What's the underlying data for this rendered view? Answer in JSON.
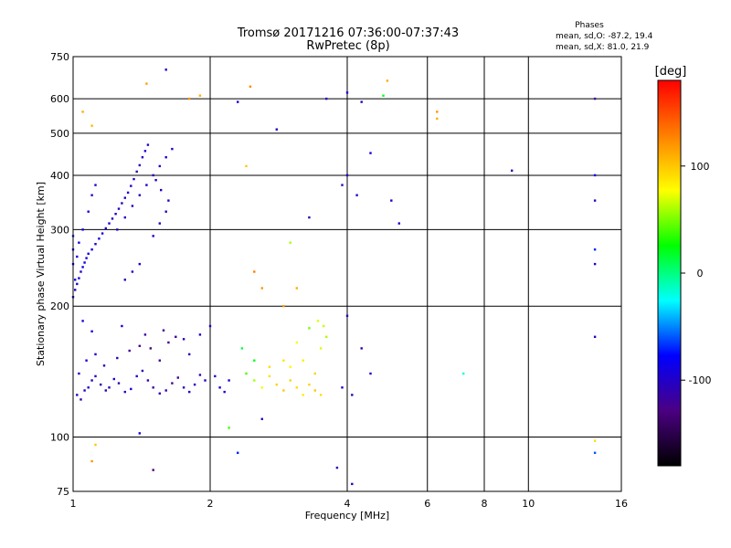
{
  "chart_data": {
    "type": "scatter",
    "title": "Tromsø 20171216 07:36:00-07:37:43",
    "subtitle": "RwPretec (8p)",
    "xlabel": "Frequency [MHz]",
    "ylabel": "Stationary phase Virtual Height [km]",
    "x_scale": "log",
    "y_scale": "log",
    "xlim": [
      1,
      16
    ],
    "ylim": [
      75,
      750
    ],
    "x_ticks": [
      1,
      2,
      4,
      6,
      8,
      10,
      16
    ],
    "x_tick_labels": [
      "1",
      "2",
      "4",
      "6",
      "8",
      "10",
      "16"
    ],
    "y_ticks": [
      75,
      100,
      200,
      300,
      400,
      500,
      600,
      750
    ],
    "y_tick_labels": [
      "75",
      "100",
      "200",
      "300",
      "400",
      "500",
      "600",
      "750"
    ],
    "grid": true,
    "stats": {
      "heading": "Phases",
      "o_line": "mean, sd,O: -87.2, 19.4",
      "x_line": "mean, sd,X:  81.0, 21.9"
    },
    "colorbar": {
      "label": "[deg]",
      "range": [
        -180,
        180
      ],
      "ticks": [
        100,
        0,
        -100
      ],
      "tick_labels": [
        "100",
        "0",
        "-100"
      ],
      "colormap": [
        "#000000",
        "#4b0082",
        "#0000ff",
        "#00ffff",
        "#00ff00",
        "#ffff00",
        "#ff8000",
        "#ff0000"
      ]
    },
    "points": [
      [
        1.02,
        125,
        -105
      ],
      [
        1.04,
        122,
        -110
      ],
      [
        1.06,
        128,
        -100
      ],
      [
        1.08,
        130,
        -95
      ],
      [
        1.1,
        135,
        -105
      ],
      [
        1.12,
        138,
        -100
      ],
      [
        1.15,
        132,
        -110
      ],
      [
        1.18,
        128,
        -105
      ],
      [
        1.2,
        130,
        -100
      ],
      [
        1.23,
        136,
        -98
      ],
      [
        1.26,
        133,
        -110
      ],
      [
        1.3,
        127,
        -105
      ],
      [
        1.34,
        129,
        -95
      ],
      [
        1.38,
        138,
        -100
      ],
      [
        1.42,
        142,
        -110
      ],
      [
        1.46,
        135,
        -115
      ],
      [
        1.5,
        130,
        -120
      ],
      [
        1.55,
        126,
        -110
      ],
      [
        1.6,
        128,
        -115
      ],
      [
        1.65,
        133,
        -125
      ],
      [
        1.7,
        137,
        -120
      ],
      [
        1.75,
        130,
        -110
      ],
      [
        1.8,
        127,
        -105
      ],
      [
        1.85,
        132,
        -100
      ],
      [
        1.9,
        139,
        -110
      ],
      [
        1.95,
        135,
        -100
      ],
      [
        2.05,
        138,
        -105
      ],
      [
        2.1,
        130,
        -95
      ],
      [
        2.15,
        127,
        -100
      ],
      [
        2.2,
        135,
        -95
      ],
      [
        1.03,
        140,
        -100
      ],
      [
        1.07,
        150,
        -90
      ],
      [
        1.12,
        155,
        -95
      ],
      [
        1.17,
        146,
        -110
      ],
      [
        1.25,
        152,
        -105
      ],
      [
        1.33,
        158,
        -120
      ],
      [
        1.4,
        162,
        -125
      ],
      [
        1.48,
        160,
        -130
      ],
      [
        1.55,
        150,
        -120
      ],
      [
        1.62,
        165,
        -125
      ],
      [
        1.68,
        170,
        -120
      ],
      [
        1.75,
        168,
        -110
      ],
      [
        1.8,
        155,
        -105
      ],
      [
        1.9,
        172,
        -100
      ],
      [
        2.0,
        180,
        -95
      ],
      [
        1.05,
        185,
        -95
      ],
      [
        1.1,
        175,
        -90
      ],
      [
        1.28,
        180,
        -100
      ],
      [
        1.44,
        172,
        -115
      ],
      [
        1.58,
        176,
        -120
      ],
      [
        1.0,
        210,
        -90
      ],
      [
        1.01,
        218,
        -95
      ],
      [
        1.02,
        225,
        -92
      ],
      [
        1.03,
        232,
        -88
      ],
      [
        1.04,
        240,
        -95
      ],
      [
        1.05,
        246,
        -90
      ],
      [
        1.06,
        252,
        -85
      ],
      [
        1.07,
        258,
        -92
      ],
      [
        1.08,
        264,
        -90
      ],
      [
        1.1,
        270,
        -88
      ],
      [
        1.12,
        278,
        -95
      ],
      [
        1.14,
        286,
        -92
      ],
      [
        1.16,
        294,
        -90
      ],
      [
        1.18,
        302,
        -95
      ],
      [
        1.2,
        310,
        -100
      ],
      [
        1.22,
        318,
        -98
      ],
      [
        1.24,
        326,
        -95
      ],
      [
        1.26,
        335,
        -100
      ],
      [
        1.28,
        345,
        -105
      ],
      [
        1.3,
        355,
        -100
      ],
      [
        1.32,
        365,
        -95
      ],
      [
        1.34,
        378,
        -100
      ],
      [
        1.36,
        392,
        -105
      ],
      [
        1.38,
        408,
        -110
      ],
      [
        1.4,
        422,
        -105
      ],
      [
        1.42,
        440,
        -100
      ],
      [
        1.44,
        455,
        -95
      ],
      [
        1.46,
        470,
        -100
      ],
      [
        1.0,
        250,
        -80
      ],
      [
        1.0,
        270,
        -75
      ],
      [
        1.0,
        290,
        -70
      ],
      [
        1.01,
        230,
        -85
      ],
      [
        1.02,
        260,
        -90
      ],
      [
        1.03,
        280,
        -92
      ],
      [
        1.05,
        300,
        -88
      ],
      [
        1.08,
        330,
        -95
      ],
      [
        1.1,
        360,
        -100
      ],
      [
        1.12,
        380,
        -102
      ],
      [
        1.25,
        300,
        -98
      ],
      [
        1.3,
        320,
        -100
      ],
      [
        1.35,
        340,
        -105
      ],
      [
        1.4,
        360,
        -100
      ],
      [
        1.45,
        380,
        -98
      ],
      [
        1.5,
        400,
        -105
      ],
      [
        1.55,
        420,
        -100
      ],
      [
        1.6,
        440,
        -95
      ],
      [
        1.65,
        460,
        -100
      ],
      [
        1.6,
        330,
        -110
      ],
      [
        1.55,
        310,
        -105
      ],
      [
        1.5,
        290,
        -100
      ],
      [
        1.62,
        350,
        -105
      ],
      [
        1.56,
        370,
        -100
      ],
      [
        1.52,
        390,
        -95
      ],
      [
        1.4,
        250,
        -95
      ],
      [
        1.35,
        240,
        -100
      ],
      [
        1.3,
        230,
        -105
      ],
      [
        2.4,
        140,
        40
      ],
      [
        2.5,
        135,
        60
      ],
      [
        2.6,
        130,
        80
      ],
      [
        2.7,
        138,
        90
      ],
      [
        2.8,
        132,
        95
      ],
      [
        2.9,
        128,
        100
      ],
      [
        3.0,
        135,
        95
      ],
      [
        3.1,
        130,
        90
      ],
      [
        3.2,
        125,
        85
      ],
      [
        3.3,
        132,
        95
      ],
      [
        3.4,
        128,
        100
      ],
      [
        3.5,
        125,
        90
      ],
      [
        3.0,
        145,
        80
      ],
      [
        3.2,
        150,
        85
      ],
      [
        3.4,
        140,
        95
      ],
      [
        3.5,
        160,
        70
      ],
      [
        3.6,
        170,
        60
      ],
      [
        3.3,
        178,
        50
      ],
      [
        3.1,
        165,
        75
      ],
      [
        2.9,
        150,
        88
      ],
      [
        2.7,
        145,
        92
      ],
      [
        2.5,
        150,
        20
      ],
      [
        2.35,
        160,
        10
      ],
      [
        3.55,
        180,
        65
      ],
      [
        3.45,
        185,
        70
      ],
      [
        1.05,
        560,
        110
      ],
      [
        1.1,
        520,
        105
      ],
      [
        1.45,
        650,
        115
      ],
      [
        1.8,
        600,
        120
      ],
      [
        2.45,
        640,
        125
      ],
      [
        2.4,
        420,
        100
      ],
      [
        2.5,
        240,
        130
      ],
      [
        2.6,
        220,
        120
      ],
      [
        2.9,
        200,
        115
      ],
      [
        3.1,
        220,
        110
      ],
      [
        3.6,
        600,
        -100
      ],
      [
        4.0,
        620,
        -95
      ],
      [
        4.3,
        590,
        -105
      ],
      [
        4.8,
        610,
        20
      ],
      [
        4.9,
        660,
        110
      ],
      [
        6.3,
        560,
        120
      ],
      [
        6.3,
        540,
        110
      ],
      [
        7.2,
        140,
        -20
      ],
      [
        9.2,
        410,
        -110
      ],
      [
        14.0,
        600,
        -120
      ],
      [
        14.0,
        400,
        -80
      ],
      [
        14.0,
        350,
        -105
      ],
      [
        14.0,
        270,
        -70
      ],
      [
        14.0,
        250,
        -100
      ],
      [
        14.0,
        170,
        -110
      ],
      [
        14.0,
        92,
        -60
      ],
      [
        14.0,
        98,
        90
      ],
      [
        1.1,
        88,
        120
      ],
      [
        1.12,
        96,
        100
      ],
      [
        1.4,
        102,
        -90
      ],
      [
        1.5,
        84,
        -130
      ],
      [
        2.2,
        105,
        40
      ],
      [
        2.3,
        92,
        -70
      ],
      [
        2.6,
        110,
        -105
      ],
      [
        3.8,
        85,
        -110
      ],
      [
        4.1,
        78,
        -100
      ],
      [
        3.9,
        380,
        -110
      ],
      [
        4.0,
        400,
        -100
      ],
      [
        4.2,
        360,
        -105
      ],
      [
        4.5,
        450,
        -95
      ],
      [
        5.0,
        350,
        -100
      ],
      [
        5.2,
        310,
        -98
      ],
      [
        4.0,
        190,
        -105
      ],
      [
        4.3,
        160,
        -110
      ],
      [
        4.5,
        140,
        -100
      ],
      [
        3.9,
        130,
        -95
      ],
      [
        4.1,
        125,
        -105
      ],
      [
        3.3,
        320,
        -110
      ],
      [
        3.0,
        280,
        60
      ],
      [
        2.8,
        510,
        -100
      ],
      [
        2.3,
        590,
        -95
      ],
      [
        1.9,
        610,
        110
      ],
      [
        1.6,
        700,
        -100
      ]
    ]
  }
}
